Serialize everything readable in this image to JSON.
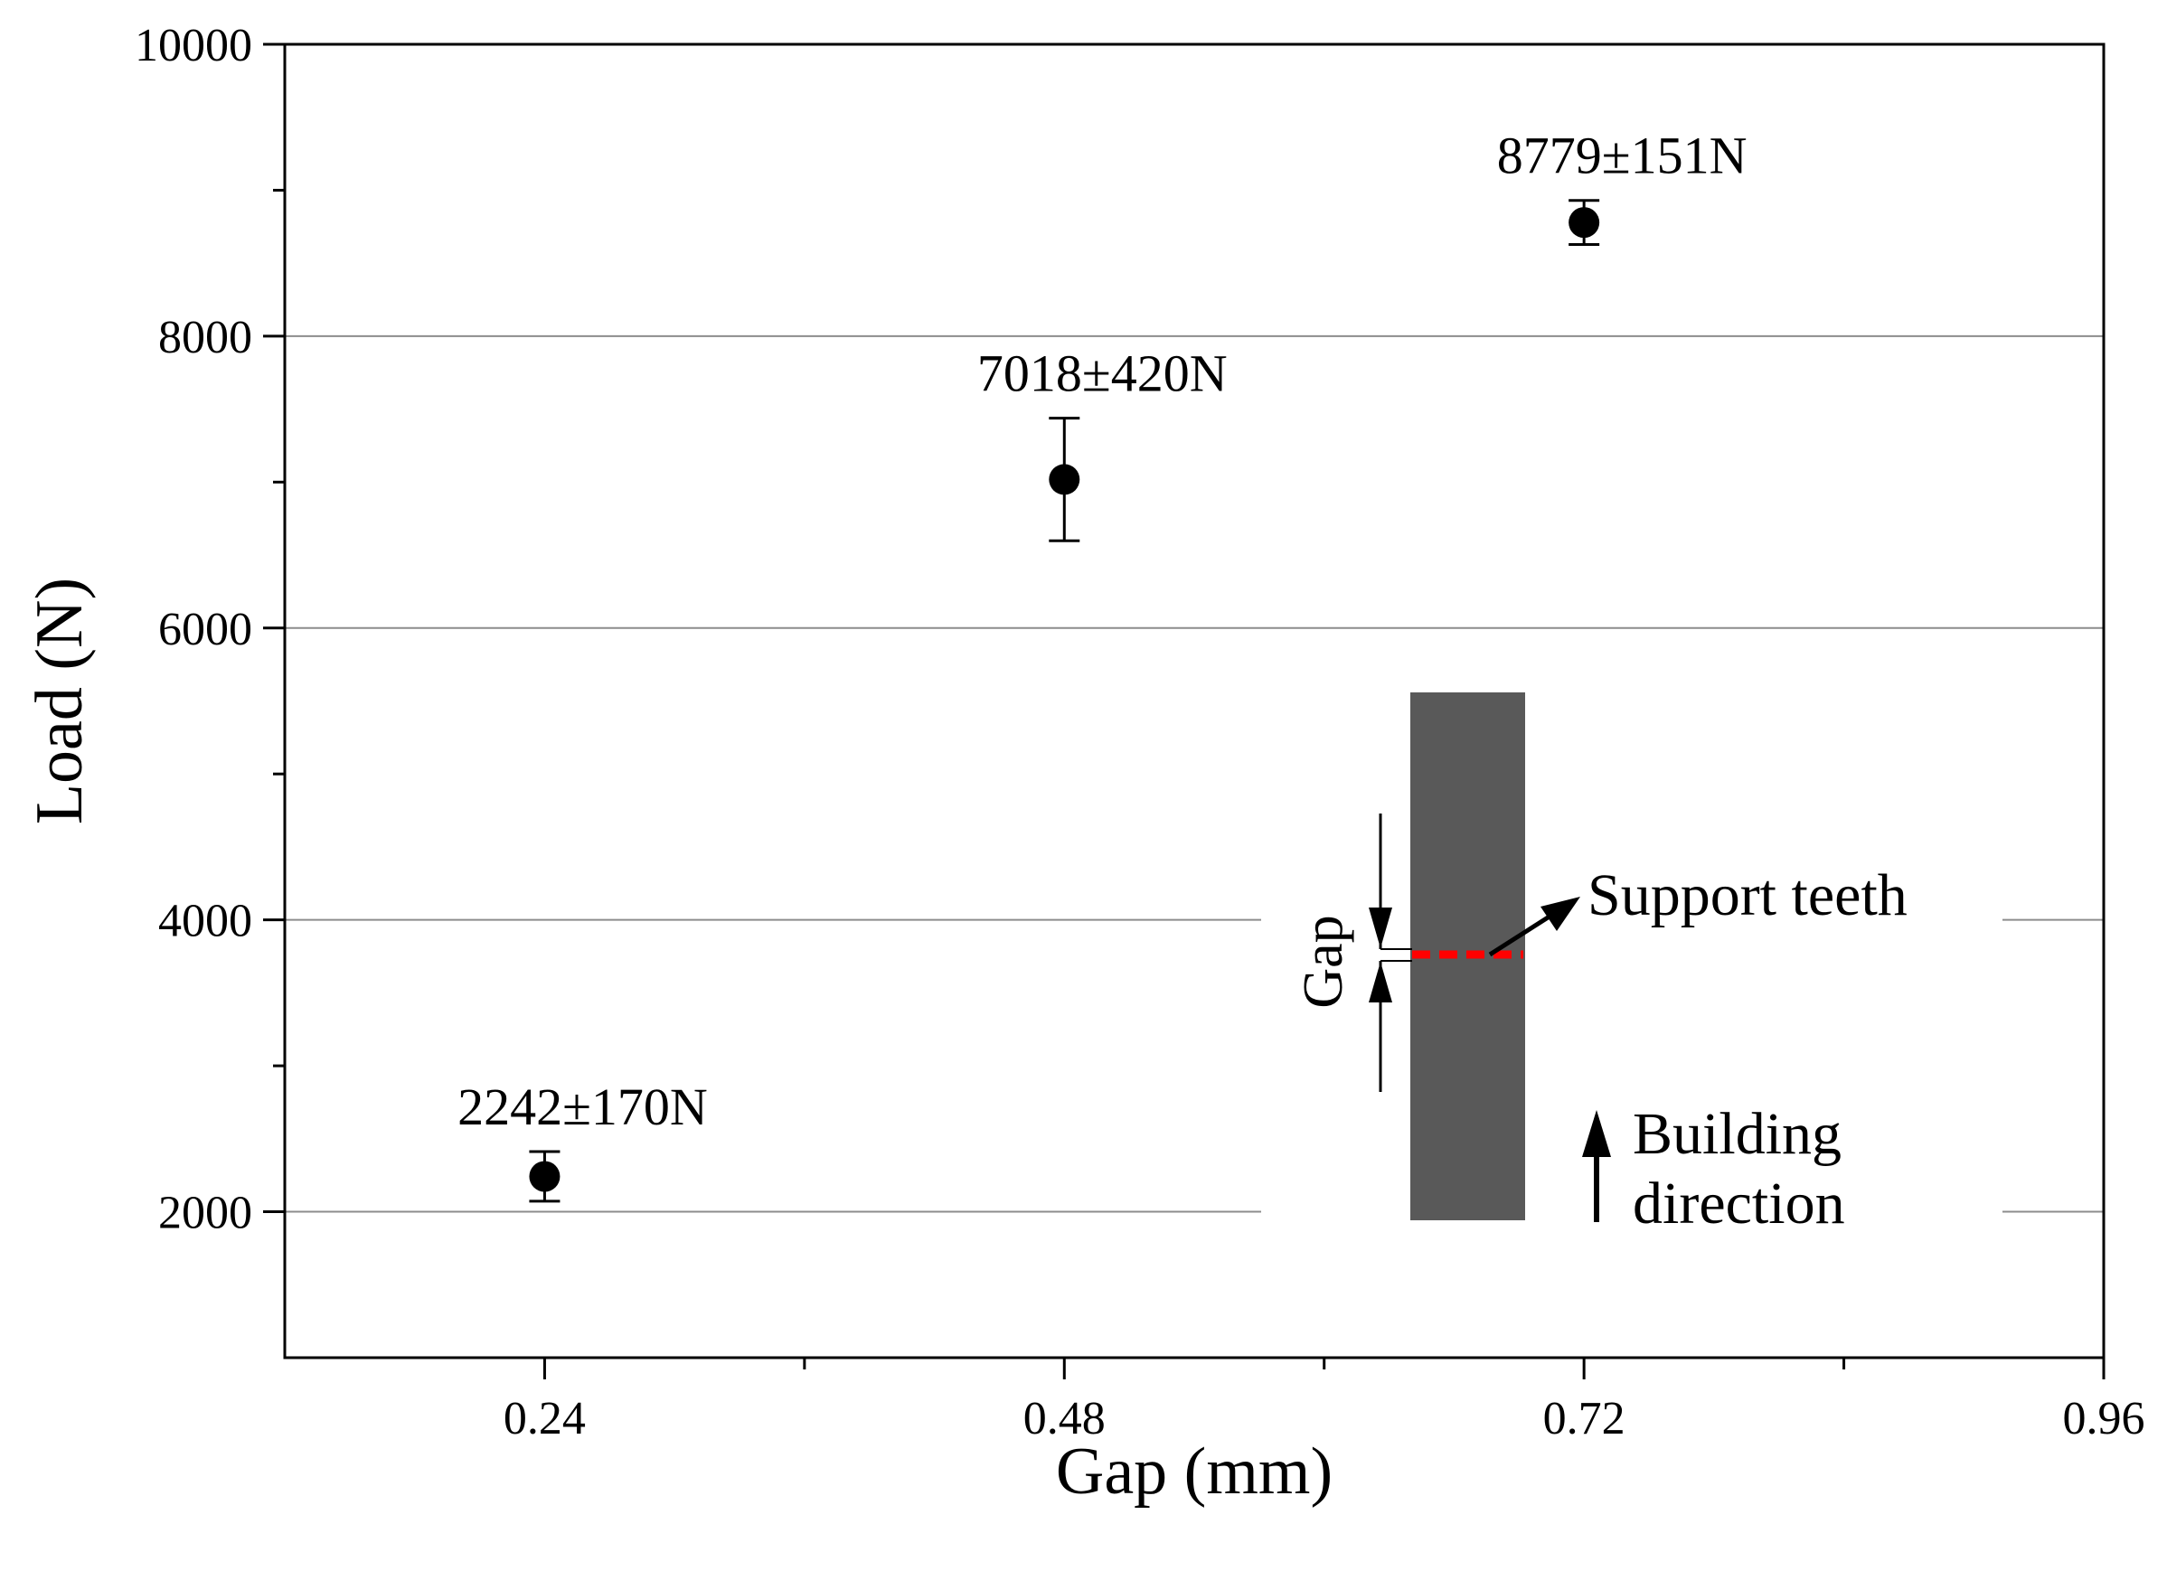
{
  "chart_data": {
    "type": "scatter",
    "title": "",
    "xlabel": "Gap (mm)",
    "ylabel": "Load (N)",
    "xlim": [
      0.12,
      0.96
    ],
    "ylim": [
      1000,
      10000
    ],
    "x_ticks": [
      {
        "value": 0.24,
        "label": "0.24"
      },
      {
        "value": 0.48,
        "label": "0.48"
      },
      {
        "value": 0.72,
        "label": "0.72"
      },
      {
        "value": 0.96,
        "label": "0.96"
      }
    ],
    "x_minor_ticks": [
      0.36,
      0.6,
      0.84
    ],
    "y_ticks": [
      {
        "value": 2000,
        "label": "2000"
      },
      {
        "value": 4000,
        "label": "4000"
      },
      {
        "value": 6000,
        "label": "6000"
      },
      {
        "value": 8000,
        "label": "8000"
      },
      {
        "value": 10000,
        "label": "10000"
      }
    ],
    "y_minor_ticks": [
      3000,
      5000,
      7000,
      9000
    ],
    "gridlines_y": [
      2000,
      4000,
      6000,
      8000
    ],
    "points": [
      {
        "x": 0.24,
        "y": 2242,
        "err": 170,
        "label": "2242±170N"
      },
      {
        "x": 0.48,
        "y": 7018,
        "err": 420,
        "label": "7018±420N"
      },
      {
        "x": 0.72,
        "y": 8779,
        "err": 151,
        "label": "8779±151N"
      }
    ],
    "inset": {
      "gap_label": "Gap",
      "support_label": "Support teeth",
      "direction_label_line1": "Building",
      "direction_label_line2": "direction",
      "block_color": "#595959",
      "teeth_color": "#ff0000"
    }
  }
}
